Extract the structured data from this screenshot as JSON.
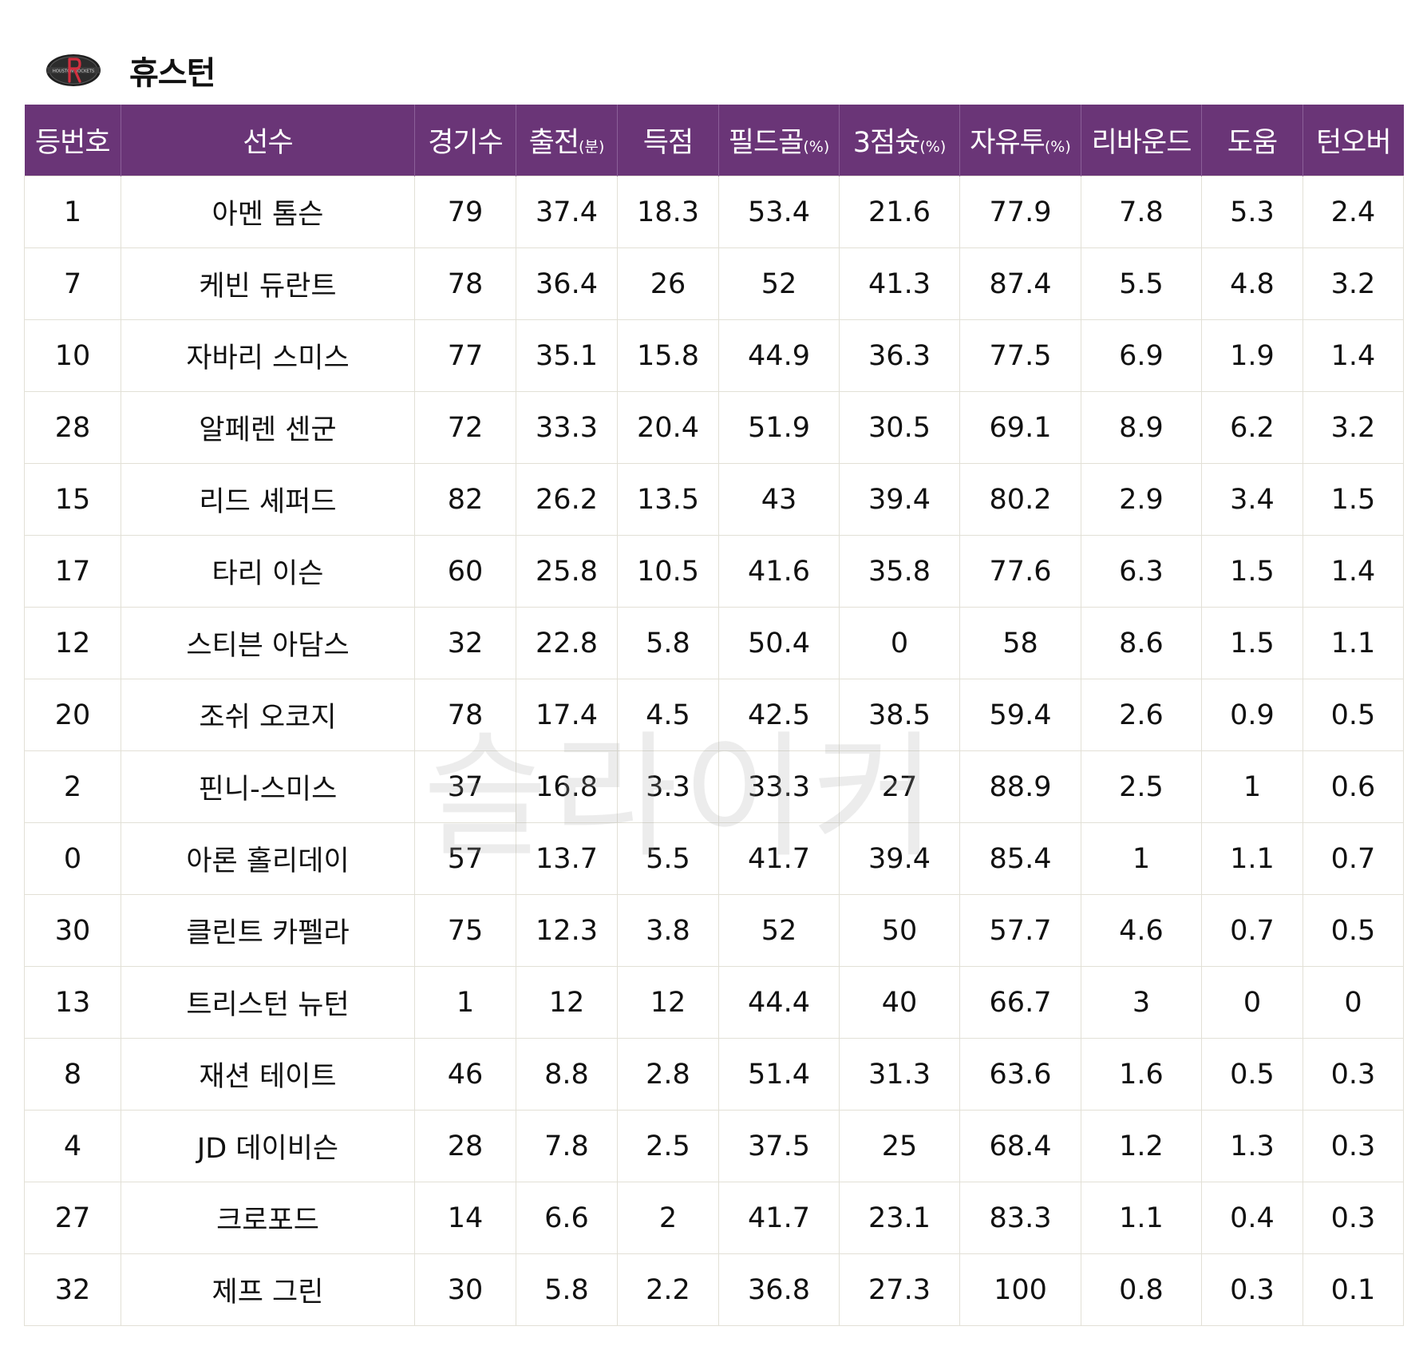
{
  "team": {
    "name": "휴스턴",
    "logo_icon": "houston-rockets-logo-icon",
    "logo_text": "HOUSTON ROCKETS"
  },
  "colors": {
    "header_bg": "#6a3577",
    "header_text": "#ffffff",
    "border": "#e2e0d6"
  },
  "columns": [
    {
      "label": "등번호",
      "unit": ""
    },
    {
      "label": "선수",
      "unit": ""
    },
    {
      "label": "경기수",
      "unit": ""
    },
    {
      "label": "출전",
      "unit": "(분)"
    },
    {
      "label": "득점",
      "unit": ""
    },
    {
      "label": "필드골",
      "unit": "(%)"
    },
    {
      "label": "3점슛",
      "unit": "(%)"
    },
    {
      "label": "자유투",
      "unit": "(%)"
    },
    {
      "label": "리바운드",
      "unit": ""
    },
    {
      "label": "도움",
      "unit": ""
    },
    {
      "label": "턴오버",
      "unit": ""
    }
  ],
  "rows": [
    [
      "1",
      "아멘 톰슨",
      "79",
      "37.4",
      "18.3",
      "53.4",
      "21.6",
      "77.9",
      "7.8",
      "5.3",
      "2.4"
    ],
    [
      "7",
      "케빈 듀란트",
      "78",
      "36.4",
      "26",
      "52",
      "41.3",
      "87.4",
      "5.5",
      "4.8",
      "3.2"
    ],
    [
      "10",
      "자바리 스미스",
      "77",
      "35.1",
      "15.8",
      "44.9",
      "36.3",
      "77.5",
      "6.9",
      "1.9",
      "1.4"
    ],
    [
      "28",
      "알페렌 센군",
      "72",
      "33.3",
      "20.4",
      "51.9",
      "30.5",
      "69.1",
      "8.9",
      "6.2",
      "3.2"
    ],
    [
      "15",
      "리드 셰퍼드",
      "82",
      "26.2",
      "13.5",
      "43",
      "39.4",
      "80.2",
      "2.9",
      "3.4",
      "1.5"
    ],
    [
      "17",
      "타리 이슨",
      "60",
      "25.8",
      "10.5",
      "41.6",
      "35.8",
      "77.6",
      "6.3",
      "1.5",
      "1.4"
    ],
    [
      "12",
      "스티븐 아담스",
      "32",
      "22.8",
      "5.8",
      "50.4",
      "0",
      "58",
      "8.6",
      "1.5",
      "1.1"
    ],
    [
      "20",
      "조쉬 오코지",
      "78",
      "17.4",
      "4.5",
      "42.5",
      "38.5",
      "59.4",
      "2.6",
      "0.9",
      "0.5"
    ],
    [
      "2",
      "핀니-스미스",
      "37",
      "16.8",
      "3.3",
      "33.3",
      "27",
      "88.9",
      "2.5",
      "1",
      "0.6"
    ],
    [
      "0",
      "아론 홀리데이",
      "57",
      "13.7",
      "5.5",
      "41.7",
      "39.4",
      "85.4",
      "1",
      "1.1",
      "0.7"
    ],
    [
      "30",
      "클린트 카펠라",
      "75",
      "12.3",
      "3.8",
      "52",
      "50",
      "57.7",
      "4.6",
      "0.7",
      "0.5"
    ],
    [
      "13",
      "트리스턴 뉴턴",
      "1",
      "12",
      "12",
      "44.4",
      "40",
      "66.7",
      "3",
      "0",
      "0"
    ],
    [
      "8",
      "재션 테이트",
      "46",
      "8.8",
      "2.8",
      "51.4",
      "31.3",
      "63.6",
      "1.6",
      "0.5",
      "0.3"
    ],
    [
      "4",
      "JD 데이비슨",
      "28",
      "7.8",
      "2.5",
      "37.5",
      "25",
      "68.4",
      "1.2",
      "1.3",
      "0.3"
    ],
    [
      "27",
      "크로포드",
      "14",
      "6.6",
      "2",
      "41.7",
      "23.1",
      "83.3",
      "1.1",
      "0.4",
      "0.3"
    ],
    [
      "32",
      "제프 그린",
      "30",
      "5.8",
      "2.2",
      "36.8",
      "27.3",
      "100",
      "0.8",
      "0.3",
      "0.1"
    ]
  ],
  "watermark": "슬라이커"
}
